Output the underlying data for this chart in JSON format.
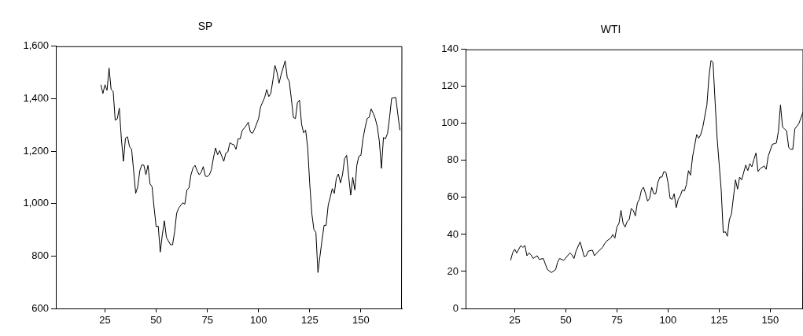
{
  "chart_data": [
    {
      "type": "line",
      "title": "SP",
      "color": "#000000",
      "x": [
        23,
        24,
        25,
        26,
        27,
        28,
        29,
        30,
        31,
        32,
        33,
        34,
        35,
        36,
        37,
        38,
        39,
        40,
        41,
        42,
        43,
        44,
        45,
        46,
        47,
        48,
        49,
        50,
        51,
        52,
        53,
        54,
        55,
        57,
        58,
        59,
        60,
        61,
        63,
        64,
        65,
        66,
        67,
        68,
        69,
        70,
        71,
        72,
        73,
        74,
        75,
        76,
        77,
        78,
        79,
        80,
        81,
        83,
        84,
        85,
        86,
        87,
        88,
        89,
        90,
        91,
        92,
        93,
        94,
        95,
        96,
        97,
        98,
        100,
        101,
        103,
        104,
        105,
        106,
        107,
        108,
        109,
        110,
        111,
        113,
        114,
        115,
        116,
        117,
        118,
        119,
        120,
        121,
        122,
        123,
        124,
        125,
        126,
        127,
        128,
        129,
        130,
        131,
        132,
        133,
        134,
        135,
        136,
        137,
        138,
        139,
        140,
        141,
        142,
        143,
        144,
        145,
        146,
        147,
        148,
        149,
        150,
        151,
        152,
        153,
        154,
        155,
        156,
        157,
        158,
        159,
        160,
        161,
        162,
        163,
        164,
        165,
        167,
        169
      ],
      "values": [
        1453,
        1420,
        1453,
        1432,
        1517,
        1435,
        1428,
        1318,
        1323,
        1364,
        1247,
        1161,
        1249,
        1255,
        1217,
        1207,
        1125,
        1039,
        1064,
        1125,
        1148,
        1146,
        1110,
        1146,
        1075,
        1064,
        983,
        912,
        914,
        815,
        881,
        934,
        871,
        843,
        843,
        892,
        963,
        983,
        1003,
        998,
        1052,
        1059,
        1110,
        1136,
        1146,
        1125,
        1110,
        1120,
        1141,
        1105,
        1103,
        1110,
        1130,
        1176,
        1212,
        1186,
        1202,
        1161,
        1192,
        1197,
        1232,
        1227,
        1224,
        1207,
        1247,
        1247,
        1278,
        1288,
        1298,
        1310,
        1273,
        1268,
        1283,
        1324,
        1369,
        1405,
        1435,
        1408,
        1420,
        1471,
        1527,
        1501,
        1459,
        1491,
        1545,
        1481,
        1466,
        1400,
        1329,
        1324,
        1385,
        1395,
        1303,
        1270,
        1280,
        1212,
        1075,
        963,
        902,
        890,
        737,
        800,
        861,
        917,
        917,
        993,
        1024,
        1057,
        1039,
        1097,
        1113,
        1079,
        1110,
        1171,
        1184,
        1105,
        1032,
        1100,
        1052,
        1146,
        1181,
        1184,
        1247,
        1288,
        1324,
        1329,
        1361,
        1344,
        1324,
        1293,
        1237,
        1134,
        1252,
        1247,
        1268,
        1329,
        1402,
        1405,
        1280
      ],
      "xlim": [
        1,
        170
      ],
      "xticks": [
        25,
        50,
        75,
        100,
        125,
        150
      ],
      "ylim": [
        600,
        1600
      ],
      "yticks": [
        {
          "value": 600,
          "label": "600"
        },
        {
          "value": 800,
          "label": "800"
        },
        {
          "value": 1000,
          "label": "1,000"
        },
        {
          "value": 1200,
          "label": "1,200"
        },
        {
          "value": 1400,
          "label": "1,400"
        },
        {
          "value": 1600,
          "label": "1,600"
        }
      ]
    },
    {
      "type": "line",
      "title": "WTI",
      "color": "#000000",
      "x": [
        23,
        24,
        25,
        26,
        28,
        29,
        30,
        31,
        32,
        33,
        34,
        36,
        37,
        39,
        40,
        41,
        43,
        45,
        46,
        47,
        49,
        52,
        53,
        54,
        55,
        57,
        59,
        60,
        61,
        63,
        64,
        66,
        68,
        69,
        70,
        72,
        73,
        74,
        75,
        76,
        77,
        78,
        79,
        80,
        81,
        82,
        83,
        84,
        85,
        86,
        87,
        88,
        89,
        90,
        91,
        92,
        93,
        94,
        95,
        96,
        97,
        98,
        99,
        100,
        101,
        102,
        103,
        104,
        105,
        106,
        107,
        108,
        109,
        110,
        111,
        112,
        114,
        115,
        116,
        117,
        119,
        120,
        121,
        122,
        123,
        124,
        126,
        127,
        128,
        129,
        130,
        131,
        133,
        134,
        135,
        136,
        138,
        139,
        140,
        141,
        142,
        143,
        144,
        145,
        147,
        148,
        149,
        151,
        153,
        154,
        155,
        156,
        157,
        158,
        159,
        160,
        161,
        162,
        164,
        166
      ],
      "values": [
        26,
        30,
        32,
        30,
        34,
        33,
        34,
        28.5,
        30,
        29,
        27,
        28.5,
        26.5,
        27,
        24,
        21,
        19.4,
        21,
        25,
        27,
        26,
        30,
        29,
        27,
        31,
        36,
        28,
        28.5,
        31,
        31.5,
        28.5,
        31,
        33,
        35,
        36.5,
        38,
        40,
        38,
        44,
        46,
        53,
        46,
        44,
        47,
        48,
        54,
        53,
        50,
        57,
        59,
        64,
        65.5,
        62,
        58,
        59.5,
        65.5,
        62,
        62,
        68,
        71,
        71,
        74,
        73.5,
        68,
        59.5,
        59,
        62,
        54.5,
        59,
        61,
        64,
        63.5,
        67,
        74.5,
        72,
        82,
        94,
        92,
        94,
        98,
        110,
        125,
        134,
        133,
        112,
        92,
        64,
        41,
        41.5,
        39,
        48,
        51,
        69.5,
        64.5,
        71,
        69.5,
        77.5,
        74.5,
        78.3,
        76.6,
        80.6,
        84,
        74,
        75.5,
        77,
        75.2,
        82.3,
        88.7,
        89.4,
        96,
        110,
        98,
        97,
        96,
        87,
        86,
        86,
        97,
        100,
        106
      ],
      "xlim": [
        1,
        166
      ],
      "xticks": [
        25,
        50,
        75,
        100,
        125,
        150
      ],
      "ylim": [
        0,
        140
      ],
      "yticks": [
        0,
        20,
        40,
        60,
        80,
        100,
        120,
        140
      ]
    }
  ]
}
